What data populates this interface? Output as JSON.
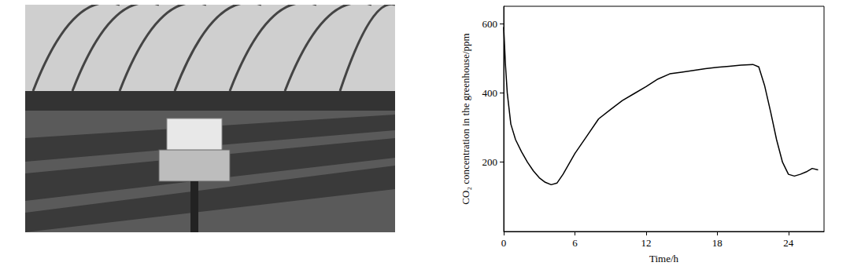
{
  "chart_data": {
    "type": "line",
    "x_label": "Time/h",
    "y_label": "CO₂ concentration in the greenhouse/ppm",
    "x": [
      0,
      0.15,
      0.3,
      0.6,
      1,
      1.5,
      2,
      2.5,
      3,
      3.5,
      4,
      4.5,
      5,
      5.5,
      6,
      7,
      8,
      9,
      10,
      11,
      12,
      13,
      14,
      15,
      16,
      17,
      18,
      19,
      20,
      21,
      21.5,
      22,
      22.5,
      23,
      23.5,
      24,
      24.5,
      25,
      25.5,
      26,
      26.5
    ],
    "values": [
      590,
      480,
      400,
      310,
      265,
      230,
      200,
      175,
      155,
      142,
      135,
      140,
      165,
      195,
      225,
      275,
      325,
      352,
      378,
      398,
      418,
      440,
      455,
      460,
      465,
      470,
      474,
      477,
      480,
      482,
      475,
      420,
      345,
      265,
      200,
      165,
      160,
      165,
      172,
      182,
      178
    ],
    "color": "#000000",
    "xlim": [
      0,
      27
    ],
    "ylim": [
      0,
      650
    ],
    "xticks": [
      0,
      6,
      12,
      18,
      24
    ],
    "yticks": [
      200,
      400,
      600
    ],
    "grid": false
  }
}
